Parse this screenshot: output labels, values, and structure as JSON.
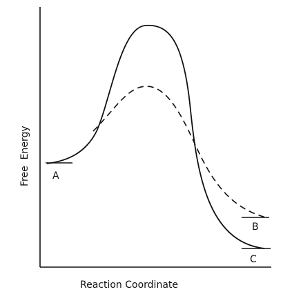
{
  "axes": {
    "x_title": "Reaction Coordinate",
    "y_title": "Free  Energy"
  },
  "states": {
    "a": "A",
    "b": "B",
    "c": "C"
  },
  "style": {
    "ink": "#111111",
    "background": "#ffffff"
  }
}
